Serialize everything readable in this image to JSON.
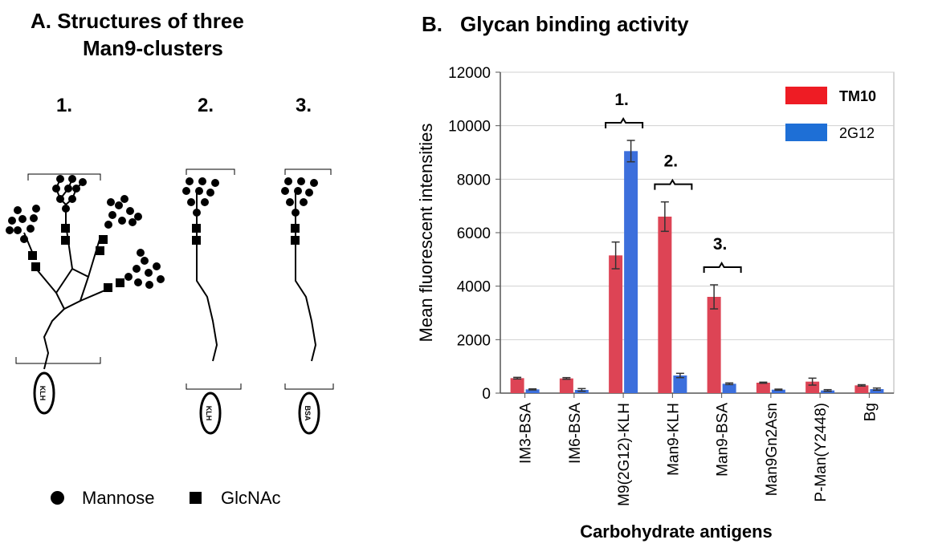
{
  "panel_a": {
    "title_line1": "A.  Structures of three",
    "title_line2": "Man9-clusters",
    "structures": [
      {
        "number": "1.",
        "carrier": "KLH"
      },
      {
        "number": "2.",
        "carrier": "KLH"
      },
      {
        "number": "3.",
        "carrier": "BSA"
      }
    ],
    "legend": {
      "mannose": "Mannose",
      "glcnac": "GlcNAc"
    }
  },
  "panel_b": {
    "title_letter": "B.",
    "title_text": "Glycan binding activity"
  },
  "chart_data": {
    "type": "bar",
    "title": "Glycan binding activity",
    "xlabel": "Carbohydrate antigens",
    "ylabel": "Mean fluorescent intensities",
    "categories": [
      "IM3-BSA",
      "IM6-BSA",
      "M9(2G12)-KLH",
      "Man9-KLH",
      "Man9-BSA",
      "Man9Gn2Asn",
      "P-Man(Y2448)",
      "Bg"
    ],
    "series": [
      {
        "name": "TM10",
        "color": "#dd4455",
        "values": [
          560,
          550,
          5150,
          6600,
          3600,
          390,
          430,
          290
        ],
        "errors": [
          30,
          30,
          500,
          550,
          450,
          20,
          130,
          25
        ]
      },
      {
        "name": "2G12",
        "color": "#3c6fdc",
        "values": [
          140,
          120,
          9050,
          660,
          350,
          130,
          100,
          150
        ],
        "errors": [
          20,
          50,
          400,
          80,
          30,
          20,
          30,
          40
        ]
      }
    ],
    "ylim": [
      0,
      12000
    ],
    "yticks": [
      0,
      2000,
      4000,
      6000,
      8000,
      10000,
      12000
    ],
    "grid": true,
    "legend_position": "top-right",
    "annotations": [
      {
        "label": "1.",
        "category": "M9(2G12)-KLH"
      },
      {
        "label": "2.",
        "category": "Man9-KLH"
      },
      {
        "label": "3.",
        "category": "Man9-BSA"
      }
    ]
  }
}
